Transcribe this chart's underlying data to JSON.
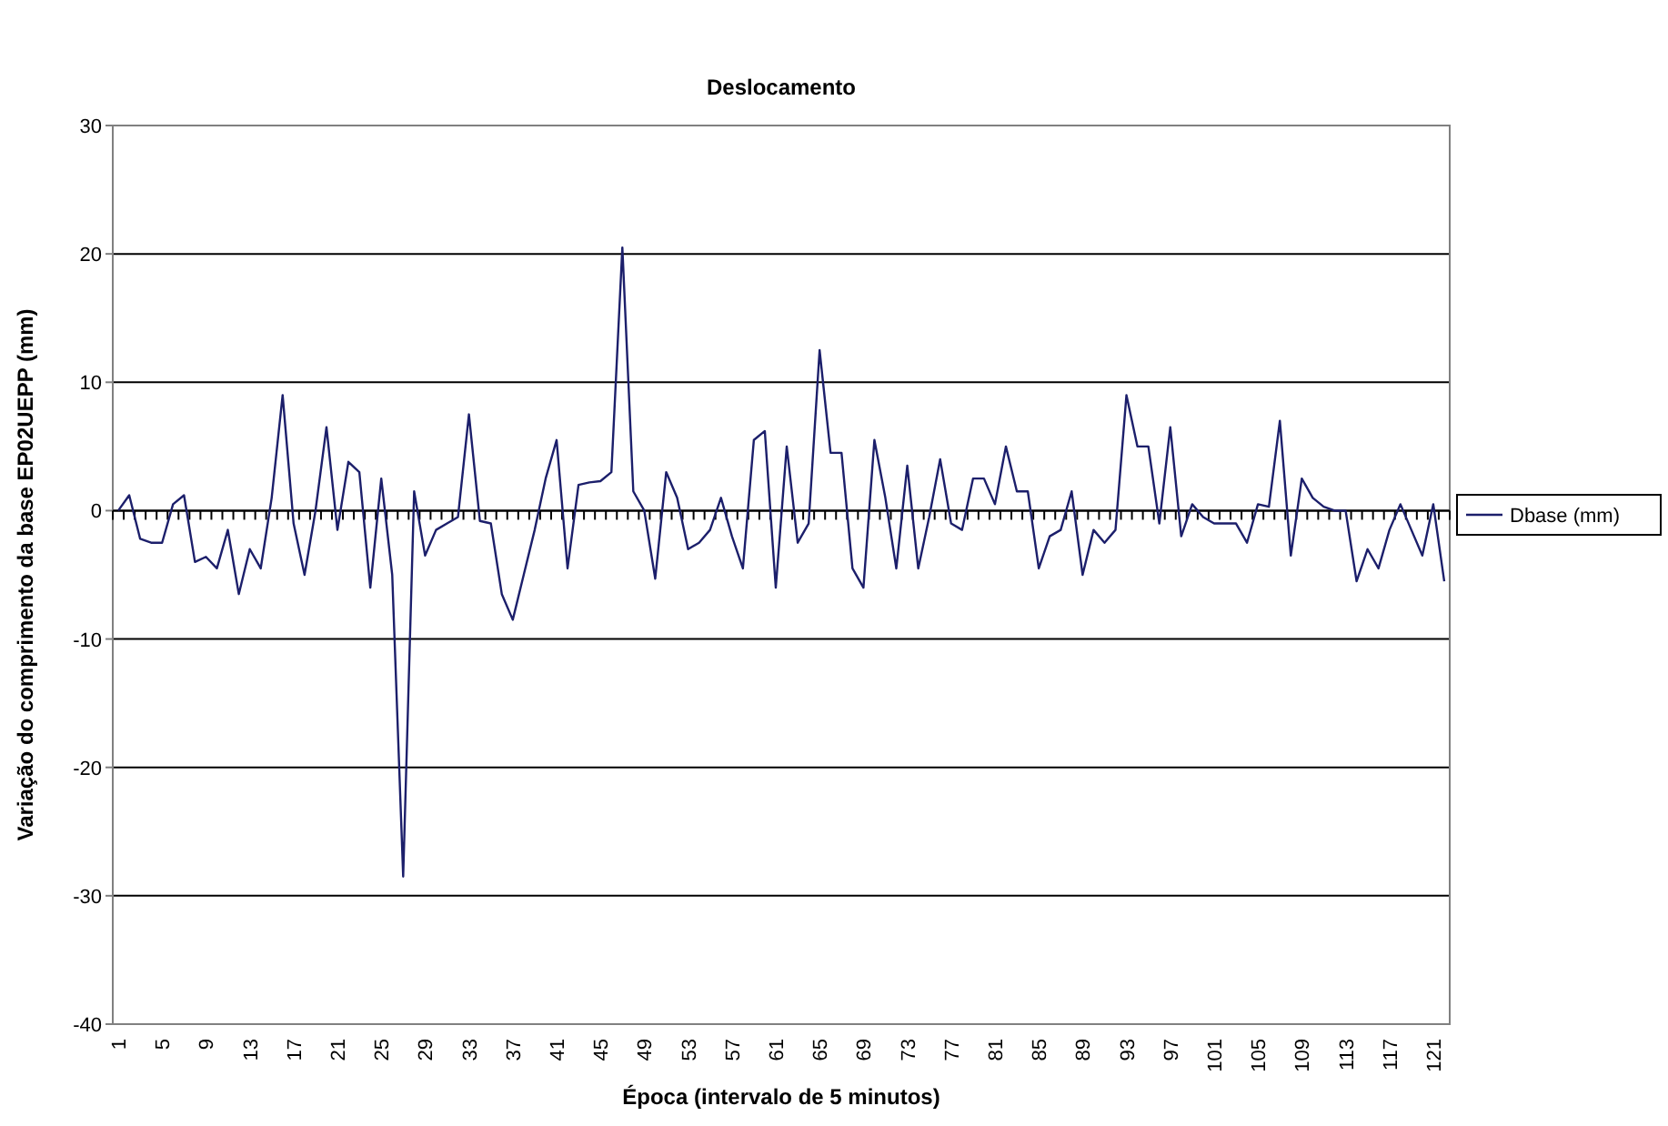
{
  "chart_data": {
    "type": "line",
    "title": "Deslocamento",
    "xlabel": "Época (intervalo de 5 minutos)",
    "ylabel": "Variação do comprimento da base EP02UEPP (mm)",
    "categories": [
      "1",
      null,
      null,
      null,
      "5",
      null,
      null,
      null,
      "9",
      null,
      null,
      null,
      "13",
      null,
      null,
      null,
      "17",
      null,
      null,
      null,
      "21",
      null,
      null,
      null,
      "25",
      null,
      null,
      null,
      "29",
      null,
      null,
      null,
      "33",
      null,
      null,
      null,
      "37",
      null,
      null,
      null,
      "41",
      null,
      null,
      null,
      "45",
      null,
      null,
      null,
      "49",
      null,
      null,
      null,
      "53",
      null,
      null,
      null,
      "57",
      null,
      null,
      null,
      "61",
      null,
      null,
      null,
      "65",
      null,
      null,
      null,
      "69",
      null,
      null,
      null,
      "73",
      null,
      null,
      null,
      "77",
      null,
      null,
      null,
      "81",
      null,
      null,
      null,
      "85",
      null,
      null,
      null,
      "89",
      null,
      null,
      null,
      "93",
      null,
      null,
      null,
      "97",
      null,
      null,
      null,
      "101",
      null,
      null,
      null,
      "105",
      null,
      null,
      null,
      "109",
      null,
      null,
      null,
      "113",
      null,
      null,
      null,
      "117",
      null,
      null,
      null,
      "121",
      null
    ],
    "series": [
      {
        "name": "Dbase (mm)",
        "color": "#1c1f6b",
        "values": [
          0,
          1.2,
          -2.2,
          -2.5,
          -2.5,
          0.5,
          1.2,
          -4,
          -3.6,
          -4.5,
          -1.5,
          -6.5,
          -3,
          -4.5,
          1,
          9,
          -1,
          -5,
          0,
          6.5,
          -1.5,
          3.8,
          3,
          -6,
          2.5,
          -5,
          -28.5,
          1.5,
          -3.5,
          -1.5,
          -1,
          -0.5,
          7.5,
          -0.8,
          -1,
          -6.5,
          -8.5,
          -5,
          -1.5,
          2.5,
          5.5,
          -4.5,
          2,
          2.2,
          2.3,
          3,
          20.5,
          1.5,
          0,
          -5.3,
          3,
          1,
          -3,
          -2.5,
          -1.5,
          1,
          -2,
          -4.5,
          5.5,
          6.2,
          -6,
          5,
          -2.5,
          -1,
          12.5,
          4.5,
          4.5,
          -4.5,
          -6,
          5.5,
          1,
          -4.5,
          3.5,
          -4.5,
          -0.5,
          4,
          -1,
          -1.5,
          2.5,
          2.5,
          0.5,
          5,
          1.5,
          1.5,
          -4.5,
          -2,
          -1.5,
          1.5,
          -5,
          -1.5,
          -2.5,
          -1.5,
          9,
          5,
          5,
          -1,
          6.5,
          -2,
          0.5,
          -0.5,
          -1,
          -1,
          -1,
          -2.5,
          0.5,
          0.3,
          7,
          -3.5,
          2.5,
          1,
          0.3,
          0,
          0,
          -5.5,
          -3,
          -4.5,
          -1.5,
          0.5,
          -1.5,
          -3.5,
          0.5,
          -5.5
        ]
      }
    ],
    "ylim": [
      -40,
      30
    ],
    "yticks": [
      -40,
      -30,
      -20,
      -10,
      0,
      10,
      20,
      30
    ],
    "grid": "y",
    "legend": "right",
    "marker": "none",
    "line_style": "solid"
  }
}
